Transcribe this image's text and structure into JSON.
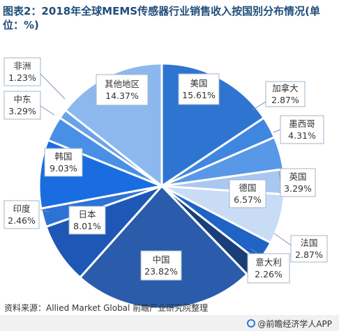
{
  "title": "图表2：2018年全球MEMS传感器行业销售收入按国别分布情况(单位：%)",
  "source": "资料来源：Allied Market Global 前瞻产业研究院整理",
  "footer": {
    "brand": "@前瞻经济学人APP",
    "icon": "brand-logo-icon"
  },
  "chart_data": {
    "type": "pie",
    "title": "图表2：2018年全球MEMS传感器行业销售收入按国别分布情况(单位：%)",
    "unit": "%",
    "legend": "none",
    "labels": [
      {
        "name": "美国",
        "value": 15.61,
        "value_label": "15.61%",
        "color": "#2e75d2"
      },
      {
        "name": "加拿大",
        "value": 2.87,
        "value_label": "2.87%",
        "color": "#3f86e0"
      },
      {
        "name": "墨西哥",
        "value": 4.31,
        "value_label": "4.31%",
        "color": "#5898e6"
      },
      {
        "name": "英国",
        "value": 3.29,
        "value_label": "3.29%",
        "color": "#a9c7f0"
      },
      {
        "name": "德国",
        "value": 6.57,
        "value_label": "6.57%",
        "color": "#c8dcf6"
      },
      {
        "name": "法国",
        "value": 2.87,
        "value_label": "2.87%",
        "color": "#1f63c5"
      },
      {
        "name": "意大利",
        "value": 2.26,
        "value_label": "2.26%",
        "color": "#1a3f78"
      },
      {
        "name": "中国",
        "value": 23.82,
        "value_label": "23.82%",
        "color": "#2a5cab"
      },
      {
        "name": "日本",
        "value": 8.01,
        "value_label": "8.01%",
        "color": "#1e57b5"
      },
      {
        "name": "印度",
        "value": 2.46,
        "value_label": "2.46%",
        "color": "#2d73d6"
      },
      {
        "name": "韩国",
        "value": 9.03,
        "value_label": "9.03%",
        "color": "#1a6de0"
      },
      {
        "name": "中东",
        "value": 3.29,
        "value_label": "3.29%",
        "color": "#4a8fe6"
      },
      {
        "name": "非洲",
        "value": 1.23,
        "value_label": "1.23%",
        "color": "#6aa2e8"
      },
      {
        "name": "其他地区",
        "value": 14.37,
        "value_label": "14.37%",
        "color": "#8cb8ee"
      }
    ]
  }
}
